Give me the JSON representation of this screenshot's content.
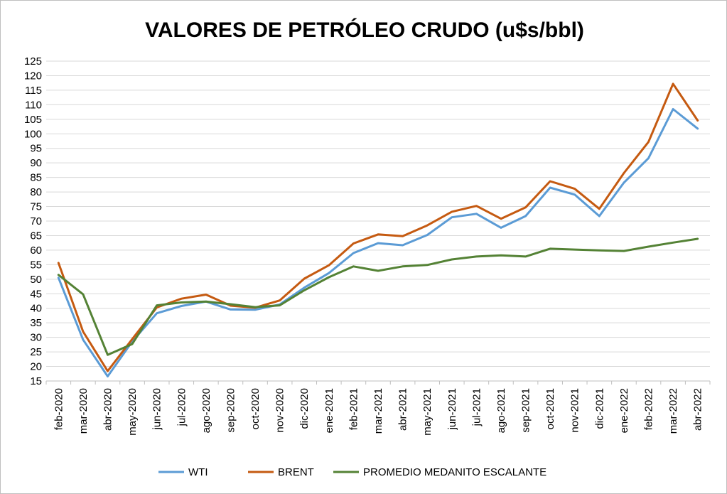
{
  "chart_data": {
    "type": "line",
    "title": "VALORES DE PETRÓLEO CRUDO (u$s/bbl)",
    "xlabel": "",
    "ylabel": "",
    "ylim": [
      15,
      125
    ],
    "yticks": [
      15,
      20,
      25,
      30,
      35,
      40,
      45,
      50,
      55,
      60,
      65,
      70,
      75,
      80,
      85,
      90,
      95,
      100,
      105,
      110,
      115,
      120,
      125
    ],
    "grid": true,
    "legend_position": "bottom",
    "categories": [
      "feb-2020",
      "mar-2020",
      "abr-2020",
      "may-2020",
      "jun-2020",
      "jul-2020",
      "ago-2020",
      "sep-2020",
      "oct-2020",
      "nov-2020",
      "dic-2020",
      "ene-2021",
      "feb-2021",
      "mar-2021",
      "abr-2021",
      "may-2021",
      "jun-2021",
      "jul-2021",
      "ago-2021",
      "sep-2021",
      "oct-2021",
      "nov-2021",
      "dic-2021",
      "ene-2022",
      "feb-2022",
      "mar-2022",
      "abr-2022"
    ],
    "series": [
      {
        "name": "WTI",
        "color": "#5b9bd5",
        "values": [
          50.5,
          29.2,
          16.6,
          28.6,
          38.3,
          40.8,
          42.3,
          39.6,
          39.5,
          41.3,
          47.1,
          52.1,
          59.0,
          62.4,
          61.7,
          65.2,
          71.3,
          72.5,
          67.7,
          71.7,
          81.5,
          79.1,
          71.7,
          83.2,
          91.6,
          108.5,
          101.8
        ]
      },
      {
        "name": "BRENT",
        "color": "#c55a11",
        "values": [
          55.6,
          32.0,
          18.4,
          29.4,
          40.3,
          43.3,
          44.7,
          40.9,
          40.2,
          42.7,
          50.2,
          54.8,
          62.3,
          65.4,
          64.8,
          68.5,
          73.2,
          75.2,
          70.8,
          74.7,
          83.7,
          81.1,
          74.2,
          86.5,
          97.2,
          117.2,
          104.6
        ]
      },
      {
        "name": "PROMEDIO MEDANITO ESCALANTE",
        "color": "#548235",
        "values": [
          51.5,
          44.8,
          24.0,
          27.7,
          41.0,
          42.0,
          42.3,
          41.4,
          40.4,
          41.0,
          46.2,
          50.7,
          54.4,
          52.9,
          54.4,
          54.9,
          56.8,
          57.8,
          58.2,
          57.8,
          60.5,
          60.2,
          59.9,
          59.7,
          61.2,
          62.6,
          63.9
        ]
      }
    ]
  }
}
